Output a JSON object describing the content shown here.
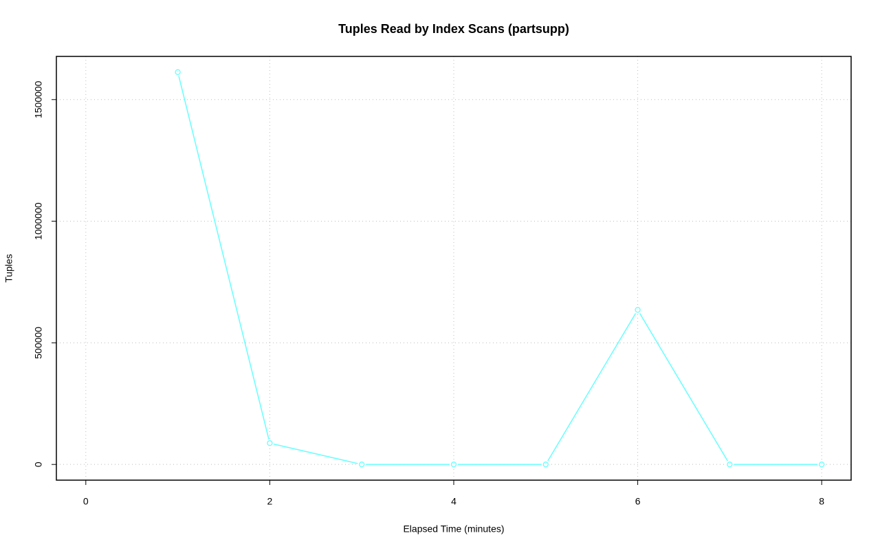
{
  "chart_data": {
    "type": "line",
    "title": "Tuples Read by Index Scans (partsupp)",
    "x_label": "Elapsed Time (minutes)",
    "y_label": "Tuples",
    "x": [
      1,
      2,
      3,
      4,
      5,
      6,
      7,
      8
    ],
    "series": [
      {
        "name": "partsupp",
        "color": "#66ffff",
        "values": [
          1613000,
          87600,
          0,
          0,
          0,
          635600,
          0,
          0
        ]
      }
    ],
    "xlim": [
      -0.32,
      8.32
    ],
    "xticks": [
      0,
      2,
      4,
      6,
      8
    ],
    "ylim": [
      -64520,
      1677520
    ],
    "yticks": [
      0,
      500000,
      1000000,
      1500000
    ],
    "grid": true
  }
}
